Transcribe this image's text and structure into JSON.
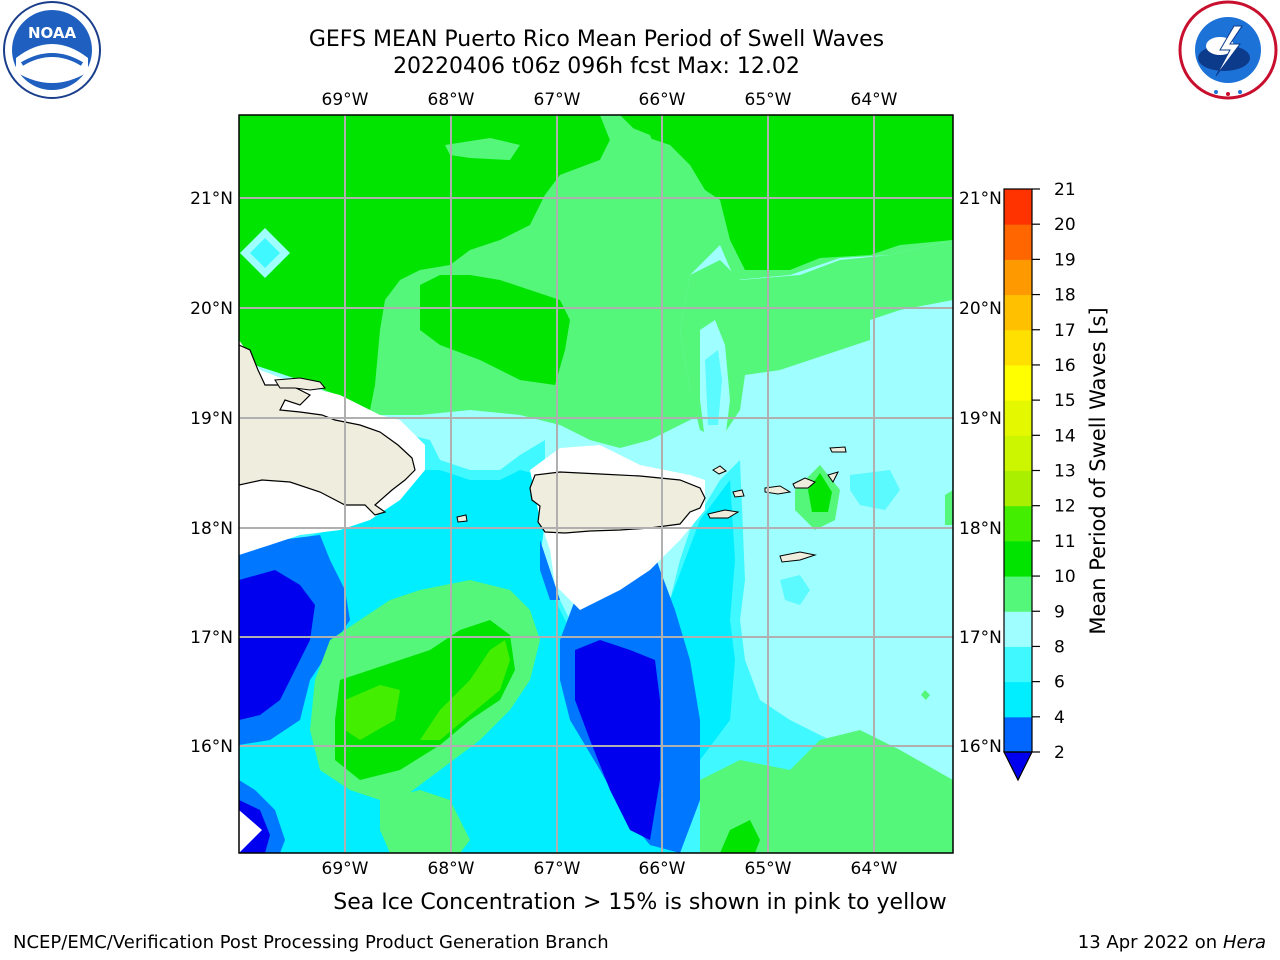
{
  "header": {
    "title_line1": "GEFS MEAN Puerto Rico Mean Period of Swell Waves",
    "title_line2": "20220406 t06z 096h fcst   Max: 12.02",
    "left_logo": "noaa-logo",
    "right_logo": "nws-logo"
  },
  "map": {
    "lon_labels": [
      "69°W",
      "68°W",
      "67°W",
      "66°W",
      "65°W",
      "64°W"
    ],
    "lat_labels": [
      "21°N",
      "20°N",
      "19°N",
      "18°N",
      "17°N",
      "16°N"
    ],
    "colors": {
      "deep_blue": "#0000ee",
      "blue": "#0077ff",
      "cyan": "#00eeff",
      "light_cyan": "#5afaff",
      "pale_cyan": "#9ffeff",
      "light_green": "#55f77a",
      "green": "#00e400",
      "land": "#efedde",
      "no_data": "#ffffff",
      "grid": "#b0b0b0"
    }
  },
  "colorbar": {
    "label": "Mean Period of Swell Waves [s]",
    "ticks": [
      "2",
      "4",
      "6",
      "8",
      "9",
      "10",
      "11",
      "12",
      "13",
      "14",
      "15",
      "16",
      "17",
      "18",
      "19",
      "20",
      "21"
    ],
    "band_colors": [
      "#0066ff",
      "#00eeff",
      "#40f8ff",
      "#9ffeff",
      "#55f77a",
      "#00e400",
      "#44ee00",
      "#aaee00",
      "#ccf500",
      "#e4f800",
      "#ffff00",
      "#ffe000",
      "#ffc000",
      "#ff9900",
      "#ff6600",
      "#ff3300",
      "#ff0000"
    ],
    "extend_low_color": "#0000ee"
  },
  "footer": {
    "sea_ice_note": "Sea Ice Concentration > 15% is shown in pink to yellow",
    "left": "NCEP/EMC/Verification Post Processing Product Generation Branch",
    "right_date": "13 Apr 2022 on",
    "right_host": "Hera"
  }
}
